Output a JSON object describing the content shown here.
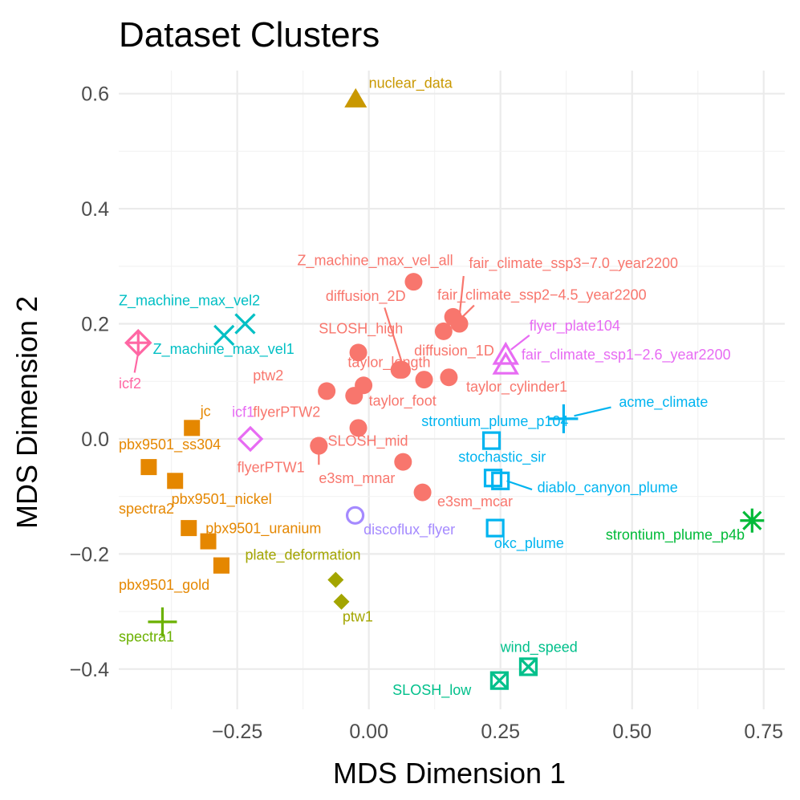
{
  "chart_data": {
    "type": "scatter",
    "title": "Dataset Clusters",
    "xlabel": "MDS Dimension 1",
    "ylabel": "MDS Dimension 2",
    "xlim": [
      -0.475,
      0.79
    ],
    "ylim": [
      -0.47,
      0.64
    ],
    "x_ticks": [
      -0.25,
      0.0,
      0.25,
      0.5,
      0.75
    ],
    "x_tick_labels": [
      "−0.25",
      "0.00",
      "0.25",
      "0.50",
      "0.75"
    ],
    "y_ticks": [
      -0.4,
      -0.2,
      0.0,
      0.2,
      0.4,
      0.6
    ],
    "y_tick_labels": [
      "−0.4",
      "−0.2",
      "0.0",
      "0.2",
      "0.4",
      "0.6"
    ],
    "grid": true,
    "legend": "none",
    "colors": {
      "salmon": "#F8766D",
      "orange": "#E58700",
      "olive_gold": "#C99800",
      "olive": "#A3A500",
      "green": "#6BB100",
      "emerald": "#00BA38",
      "teal_green": "#00C08B",
      "teal": "#00BFC4",
      "sky": "#00B4F0",
      "blue": "#619CFF",
      "lavender": "#A58AFF",
      "magenta": "#E76BF3",
      "pink": "#FF67A4"
    },
    "points": [
      {
        "label": "nuclear_data",
        "x": -0.025,
        "y": 0.59,
        "shape": "triangle",
        "color": "olive_gold",
        "lx": 0.0,
        "ly": 0.61,
        "anchor": "start"
      },
      {
        "label": "Z_machine_max_vel_all",
        "x": 0.085,
        "y": 0.273,
        "shape": "circle",
        "color": "salmon",
        "lx": 0.16,
        "ly": 0.302,
        "anchor": "end"
      },
      {
        "label": "fair_climate_ssp3−7.0_year2200",
        "x": 0.172,
        "y": 0.2,
        "shape": "circle",
        "color": "salmon",
        "lx": 0.19,
        "ly": 0.297,
        "anchor": "start",
        "leader": [
          0.18,
          0.283,
          0.172,
          0.212
        ]
      },
      {
        "label": "diffusion_2D",
        "x": 0.063,
        "y": 0.12,
        "shape": "circle",
        "color": "salmon",
        "lx": 0.07,
        "ly": 0.24,
        "anchor": "end",
        "leader": [
          0.03,
          0.228,
          0.063,
          0.132
        ]
      },
      {
        "label": "fair_climate_ssp2−4.5_year2200",
        "x": 0.16,
        "y": 0.212,
        "shape": "circle",
        "color": "salmon",
        "lx": 0.13,
        "ly": 0.242,
        "anchor": "start",
        "leader": [
          0.2,
          0.232,
          0.17,
          0.205
        ]
      },
      {
        "label": "SLOSH_high",
        "x": -0.02,
        "y": 0.15,
        "shape": "circle",
        "color": "salmon",
        "lx": 0.065,
        "ly": 0.183,
        "anchor": "end"
      },
      {
        "label": "diffusion_1D",
        "x": 0.142,
        "y": 0.187,
        "shape": "circle",
        "color": "salmon",
        "lx": 0.086,
        "ly": 0.145,
        "anchor": "start"
      },
      {
        "label": "taylor_length",
        "x": -0.01,
        "y": 0.093,
        "shape": "circle",
        "color": "salmon",
        "lx": -0.04,
        "ly": 0.125,
        "anchor": "start"
      },
      {
        "label": "ptw2",
        "x": -0.08,
        "y": 0.083,
        "shape": "circle",
        "color": "salmon",
        "lx": -0.22,
        "ly": 0.102,
        "anchor": "start"
      },
      {
        "label": "taylor_foot",
        "x": -0.028,
        "y": 0.075,
        "shape": "circle",
        "color": "salmon",
        "lx": 0.0,
        "ly": 0.058,
        "anchor": "start"
      },
      {
        "label": "taylor_cylinder1",
        "x": 0.152,
        "y": 0.107,
        "shape": "circle",
        "color": "salmon",
        "lx": 0.185,
        "ly": 0.082,
        "anchor": "start"
      },
      {
        "label": "",
        "x": 0.105,
        "y": 0.103,
        "shape": "circle",
        "color": "salmon"
      },
      {
        "label": "",
        "x": 0.058,
        "y": 0.12,
        "shape": "circle",
        "color": "salmon"
      },
      {
        "label": "flyerPTW2",
        "x": -0.02,
        "y": 0.019,
        "shape": "circle",
        "color": "salmon",
        "lx": -0.22,
        "ly": 0.038,
        "anchor": "start"
      },
      {
        "label": "SLOSH_mid",
        "x": -0.095,
        "y": -0.012,
        "shape": "circle",
        "color": "salmon",
        "lx": -0.078,
        "ly": -0.012,
        "anchor": "start"
      },
      {
        "label": "flyerPTW1",
        "x": -0.095,
        "y": -0.012,
        "shape": "circle",
        "color": "salmon",
        "lx": -0.25,
        "ly": -0.058,
        "anchor": "start",
        "leader": [
          -0.095,
          -0.045,
          -0.095,
          -0.026
        ]
      },
      {
        "label": "e3sm_mnar",
        "x": 0.065,
        "y": -0.04,
        "shape": "circle",
        "color": "salmon",
        "lx": -0.095,
        "ly": -0.077,
        "anchor": "start"
      },
      {
        "label": "e3sm_mcar",
        "x": 0.102,
        "y": -0.093,
        "shape": "circle",
        "color": "salmon",
        "lx": 0.13,
        "ly": -0.117,
        "anchor": "start"
      },
      {
        "label": "jc",
        "x": -0.336,
        "y": 0.019,
        "shape": "square",
        "color": "orange",
        "lx": -0.32,
        "ly": 0.04,
        "anchor": "start"
      },
      {
        "label": "pbx9501_ss304",
        "x": -0.418,
        "y": -0.049,
        "shape": "square",
        "color": "orange",
        "lx": -0.475,
        "ly": -0.018,
        "anchor": "start"
      },
      {
        "label": "",
        "x": -0.368,
        "y": -0.073,
        "shape": "square",
        "color": "orange"
      },
      {
        "label": "spectra2",
        "x": -0.342,
        "y": -0.155,
        "shape": "square",
        "color": "orange",
        "lx": -0.475,
        "ly": -0.13,
        "anchor": "start"
      },
      {
        "label": "pbx9501_nickel",
        "x": -0.305,
        "y": -0.178,
        "shape": "square",
        "color": "orange",
        "lx": -0.375,
        "ly": -0.113,
        "anchor": "start"
      },
      {
        "label": "pbx9501_uranium",
        "x": -0.28,
        "y": -0.22,
        "shape": "square",
        "color": "orange",
        "lx": -0.31,
        "ly": -0.164,
        "anchor": "start"
      },
      {
        "label": "pbx9501_gold",
        "x": -0.28,
        "y": -0.22,
        "shape": "square",
        "color": "orange",
        "lx": -0.475,
        "ly": -0.262,
        "anchor": "start"
      },
      {
        "label": "plate_deformation",
        "x": -0.063,
        "y": -0.245,
        "shape": "diamond",
        "color": "olive",
        "lx": -0.235,
        "ly": -0.21,
        "anchor": "start"
      },
      {
        "label": "ptw1",
        "x": -0.052,
        "y": -0.283,
        "shape": "diamond",
        "color": "olive",
        "lx": -0.05,
        "ly": -0.317,
        "anchor": "start"
      },
      {
        "label": "spectra1",
        "x": -0.392,
        "y": -0.318,
        "shape": "plus",
        "color": "green",
        "lx": -0.475,
        "ly": -0.352,
        "anchor": "start"
      },
      {
        "label": "strontium_plume_p4b",
        "x": 0.728,
        "y": -0.142,
        "shape": "asterisk",
        "color": "emerald",
        "lx": 0.45,
        "ly": -0.175,
        "anchor": "start"
      },
      {
        "label": "wind_speed",
        "x": 0.303,
        "y": -0.396,
        "shape": "squarex",
        "color": "teal_green",
        "lx": 0.25,
        "ly": -0.37,
        "anchor": "start"
      },
      {
        "label": "SLOSH_low",
        "x": 0.248,
        "y": -0.42,
        "shape": "squarex",
        "color": "teal_green",
        "lx": 0.045,
        "ly": -0.445,
        "anchor": "start"
      },
      {
        "label": "Z_machine_max_vel2",
        "x": -0.235,
        "y": 0.2,
        "shape": "cross",
        "color": "teal",
        "lx": -0.475,
        "ly": 0.232,
        "anchor": "start"
      },
      {
        "label": "Z_machine_max_vel1",
        "x": -0.275,
        "y": 0.18,
        "shape": "cross",
        "color": "teal",
        "lx": -0.41,
        "ly": 0.148,
        "anchor": "start"
      },
      {
        "label": "acme_climate",
        "x": 0.37,
        "y": 0.035,
        "shape": "plus",
        "color": "sky",
        "lx": 0.475,
        "ly": 0.056,
        "anchor": "start",
        "leader": [
          0.46,
          0.055,
          0.39,
          0.04
        ]
      },
      {
        "label": "strontium_plume_p104",
        "x": 0.233,
        "y": -0.003,
        "shape": "square_open",
        "color": "sky",
        "lx": 0.1,
        "ly": 0.022,
        "anchor": "start"
      },
      {
        "label": "stochastic_sir",
        "x": 0.236,
        "y": -0.068,
        "shape": "square_open",
        "color": "sky",
        "lx": 0.17,
        "ly": -0.04,
        "anchor": "start"
      },
      {
        "label": "diablo_canyon_plume",
        "x": 0.25,
        "y": -0.073,
        "shape": "square_open",
        "color": "sky",
        "lx": 0.32,
        "ly": -0.093,
        "anchor": "start",
        "leader": [
          0.31,
          -0.088,
          0.262,
          -0.073
        ]
      },
      {
        "label": "okc_plume",
        "x": 0.24,
        "y": -0.155,
        "shape": "square_open",
        "color": "sky",
        "lx": 0.238,
        "ly": -0.19,
        "anchor": "start"
      },
      {
        "label": "discoflux_flyer",
        "x": -0.026,
        "y": -0.133,
        "shape": "circle_open",
        "color": "lavender",
        "lx": -0.01,
        "ly": -0.166,
        "anchor": "start"
      },
      {
        "label": "flyer_plate104",
        "x": 0.26,
        "y": 0.145,
        "shape": "triangle_open",
        "color": "magenta",
        "lx": 0.305,
        "ly": 0.188,
        "anchor": "start",
        "leader": [
          0.305,
          0.18,
          0.27,
          0.155
        ]
      },
      {
        "label": "fair_climate_ssp1−2.6_year2200",
        "x": 0.26,
        "y": 0.128,
        "shape": "triangle_open",
        "color": "magenta",
        "lx": 0.29,
        "ly": 0.138,
        "anchor": "start"
      },
      {
        "label": "icf1",
        "x": -0.225,
        "y": 0.0,
        "shape": "diamond_open",
        "color": "magenta",
        "lx": -0.26,
        "ly": 0.038,
        "anchor": "start"
      },
      {
        "label": "icf2",
        "x": -0.438,
        "y": 0.167,
        "shape": "crossed_diamond",
        "color": "pink",
        "lx": -0.475,
        "ly": 0.088,
        "anchor": "start",
        "leader": [
          -0.445,
          0.115,
          -0.438,
          0.15
        ]
      }
    ]
  }
}
